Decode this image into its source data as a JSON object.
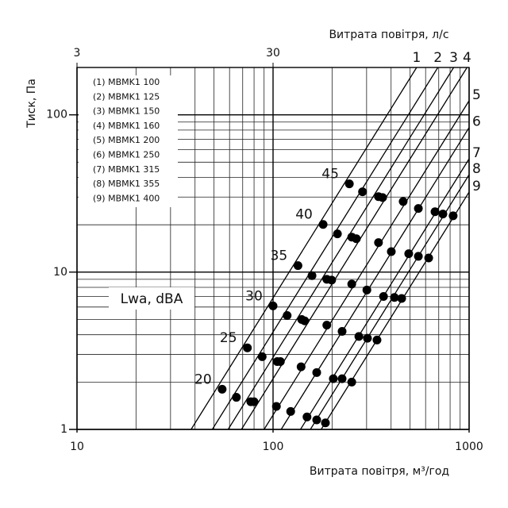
{
  "chart_data": {
    "type": "loglog",
    "x_label": "Витрата повітря, м³/год",
    "x2_label": "Витрата повітря, л/с",
    "y_label": "Тиск, Па",
    "xlim": [
      10,
      1000
    ],
    "xticks": [
      10,
      100,
      1000
    ],
    "xgrid": [
      20,
      30,
      40,
      50,
      60,
      70,
      80,
      90,
      200,
      300,
      400,
      500,
      600,
      700,
      800,
      900
    ],
    "x2lim": [
      3,
      300
    ],
    "x2ticks": [
      3,
      30
    ],
    "ylim": [
      1,
      200
    ],
    "yticks": [
      1,
      10,
      100
    ],
    "ygrid": [
      2,
      3,
      4,
      5,
      6,
      7,
      8,
      9,
      20,
      30,
      40,
      50,
      60,
      70,
      80,
      90,
      200
    ],
    "log_x": true,
    "log_y": true,
    "grid": true,
    "legend_labels": [
      "(1) MBMK1 100",
      "(2) MBMK1 125",
      "(3) MBMK1 150",
      "(4) MBMK1 160",
      "(5) MBMK1 200",
      "(6) MBMK1 250",
      "(7) MBMK1 315",
      "(8) MBMK1 355",
      "(9) MBMK1 400"
    ],
    "noise_label": "Lwa, dBA",
    "series": [
      {
        "name": "1",
        "color": "#000000",
        "x": [
          38.2,
          540
        ],
        "values": [
          1,
          200
        ]
      },
      {
        "name": "2",
        "color": "#000000",
        "x": [
          49,
          693
        ],
        "values": [
          1,
          200
        ]
      },
      {
        "name": "3",
        "color": "#000000",
        "x": [
          59,
          834
        ],
        "values": [
          1,
          200
        ]
      },
      {
        "name": "4",
        "color": "#000000",
        "x": [
          69,
          976
        ],
        "values": [
          1,
          200
        ]
      },
      {
        "name": "5",
        "color": "#000000",
        "x": [
          90,
          1000
        ],
        "values": [
          1,
          123
        ]
      },
      {
        "name": "6",
        "color": "#000000",
        "x": [
          110,
          1000
        ],
        "values": [
          1,
          83
        ]
      },
      {
        "name": "7",
        "color": "#000000",
        "x": [
          138,
          1000
        ],
        "values": [
          1,
          52.5
        ]
      },
      {
        "name": "8",
        "color": "#000000",
        "x": [
          155,
          1000
        ],
        "values": [
          1,
          41.6
        ]
      },
      {
        "name": "9",
        "color": "#000000",
        "x": [
          176,
          1000
        ],
        "values": [
          1,
          32.3
        ]
      }
    ],
    "points": [
      {
        "name": "45",
        "color": "#000000",
        "x": [
          245,
          286,
          345,
          362,
          461,
          551,
          670,
          735,
          829
        ],
        "values": [
          36.4,
          32.4,
          30.2,
          29.8,
          28.1,
          25.4,
          24.2,
          23.4,
          22.8
        ]
      },
      {
        "name": "40",
        "color": "#000000",
        "x": [
          180,
          213,
          252,
          266,
          345,
          401,
          492,
          551,
          622
        ],
        "values": [
          20.1,
          17.5,
          16.7,
          16.3,
          15.4,
          13.5,
          13.1,
          12.6,
          12.3
        ]
      },
      {
        "name": "35",
        "color": "#000000",
        "x": [
          134,
          158,
          188,
          199,
          252,
          301,
          366,
          416,
          453
        ],
        "values": [
          11.0,
          9.5,
          9.0,
          8.9,
          8.4,
          7.7,
          7.0,
          6.9,
          6.8
        ]
      },
      {
        "name": "30",
        "color": "#000000",
        "x": [
          100,
          118,
          140,
          145,
          188,
          225,
          274,
          303,
          339
        ],
        "values": [
          6.1,
          5.3,
          5.0,
          4.9,
          4.6,
          4.2,
          3.9,
          3.8,
          3.7
        ]
      },
      {
        "name": "25",
        "color": "#000000",
        "x": [
          74,
          88,
          105,
          109,
          139,
          167,
          203,
          225,
          252
        ],
        "values": [
          3.3,
          2.9,
          2.7,
          2.7,
          2.5,
          2.3,
          2.1,
          2.1,
          2.0
        ]
      },
      {
        "name": "20",
        "color": "#000000",
        "x": [
          55,
          65,
          77,
          80,
          104,
          123,
          149,
          167,
          185
        ],
        "values": [
          1.8,
          1.6,
          1.5,
          1.5,
          1.4,
          1.3,
          1.2,
          1.15,
          1.1
        ]
      }
    ]
  }
}
